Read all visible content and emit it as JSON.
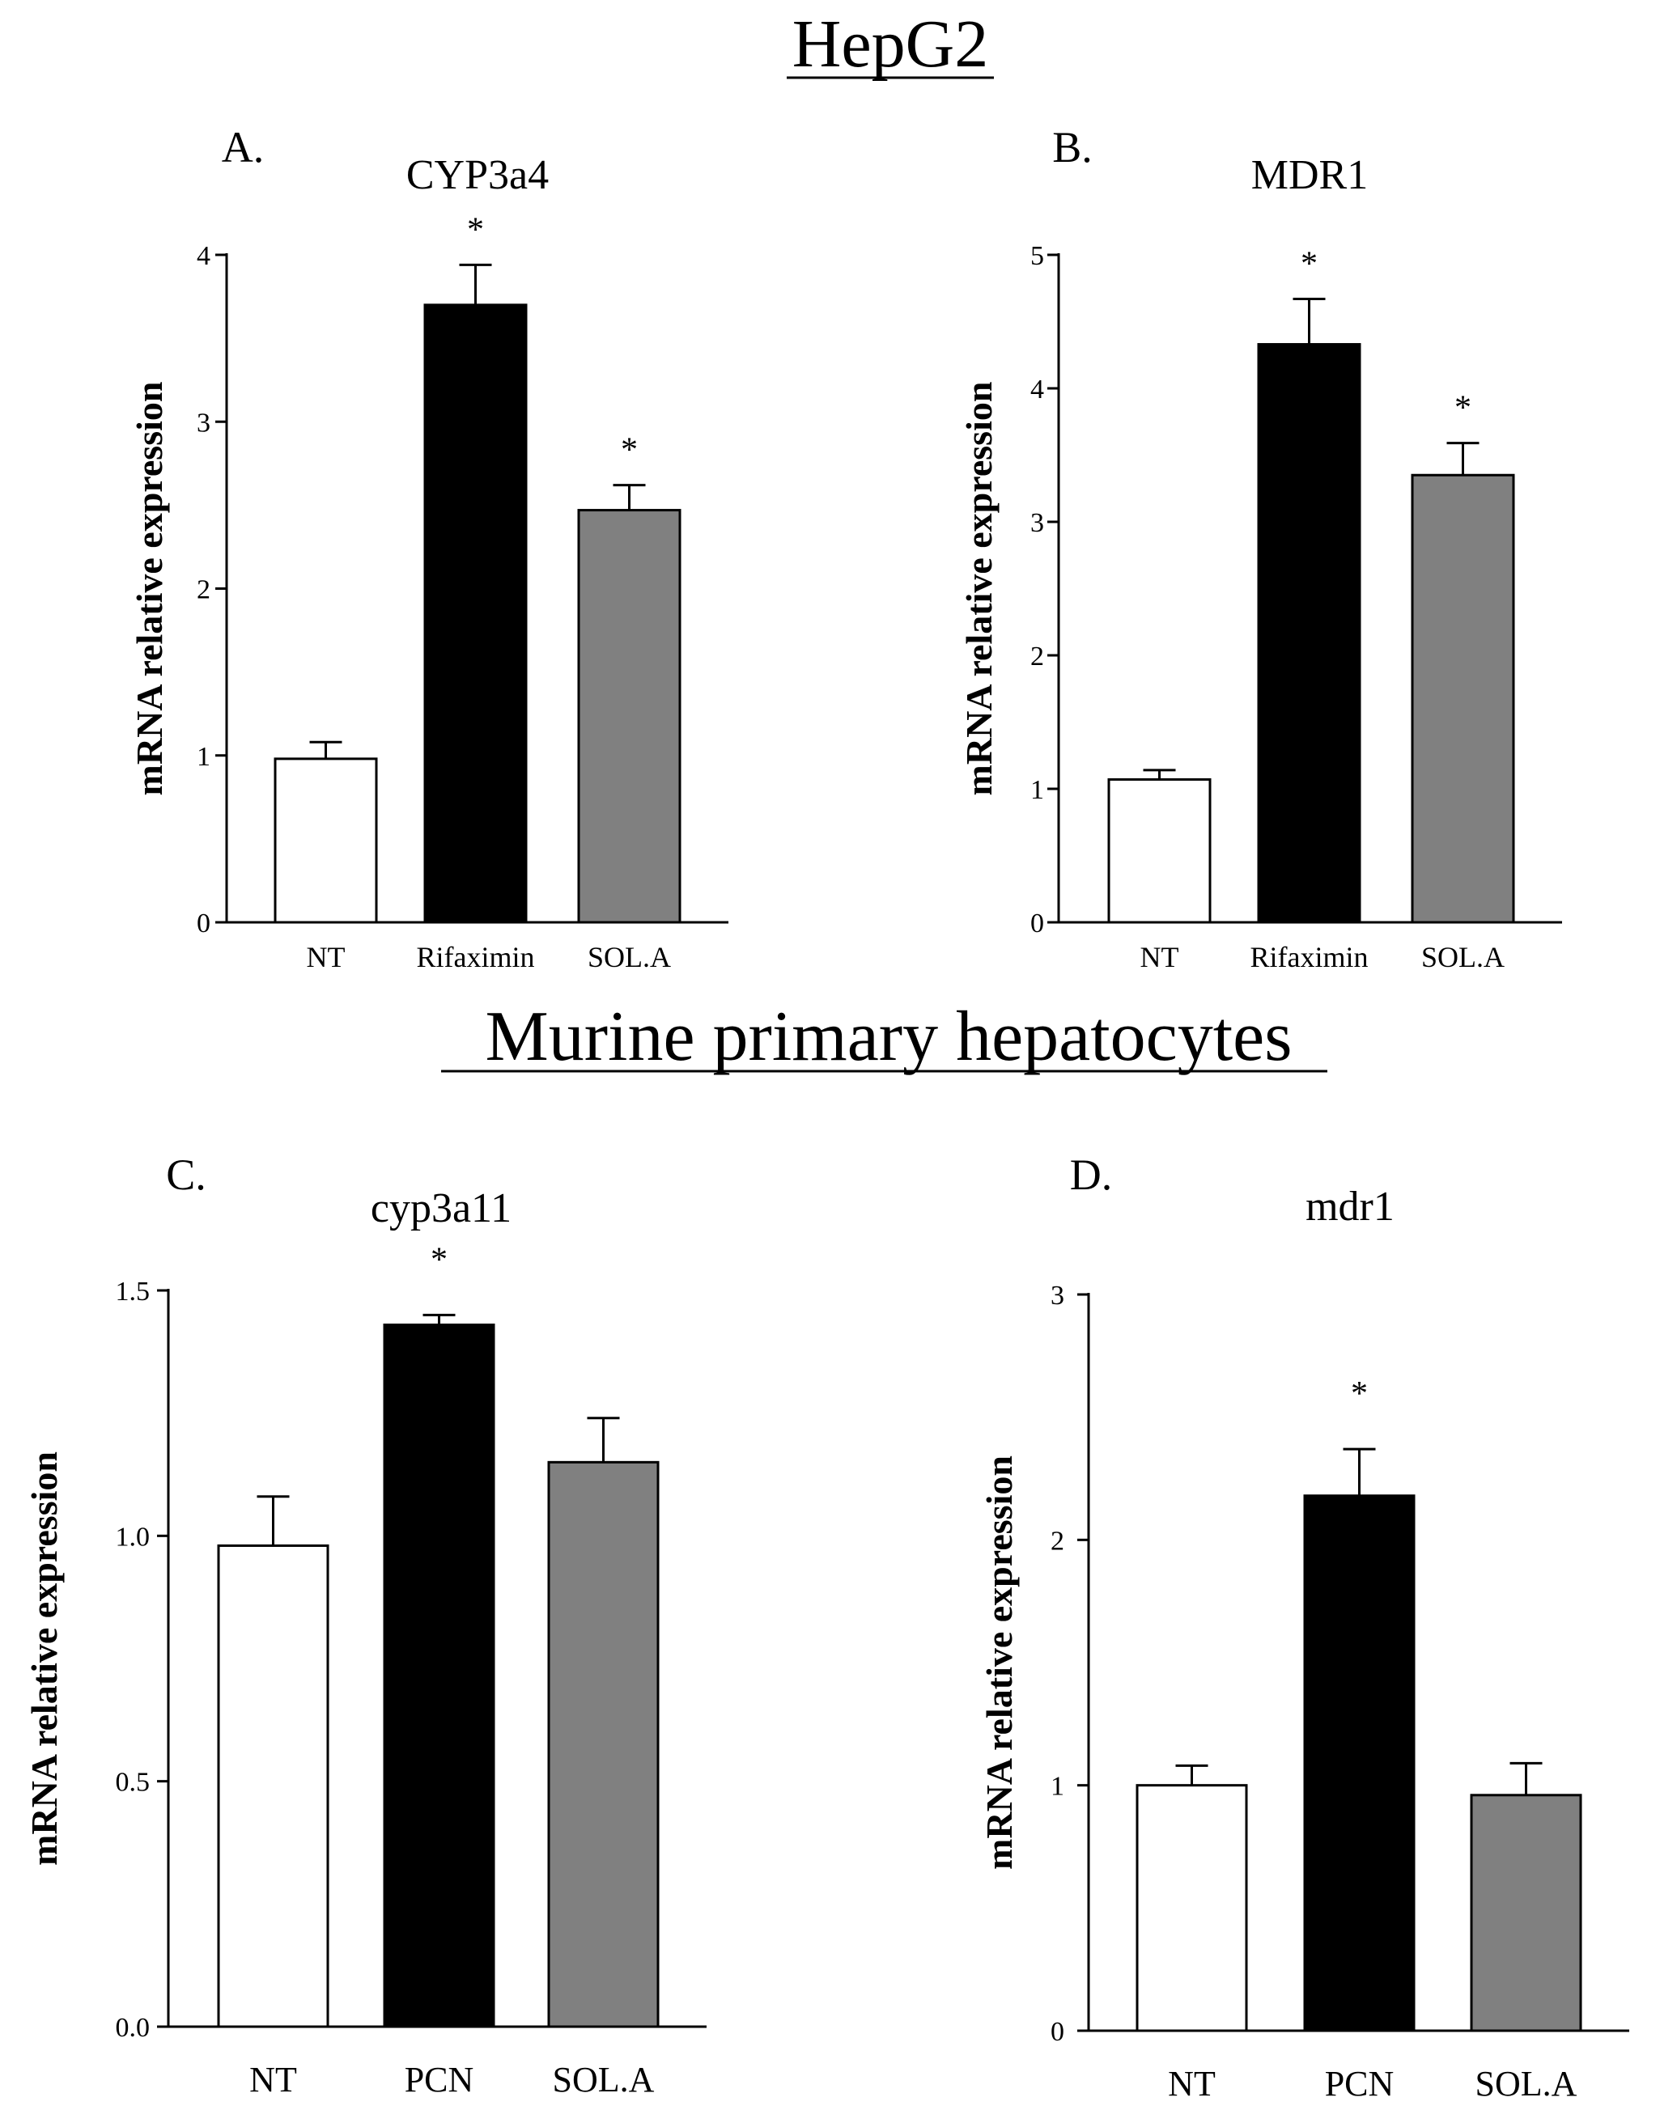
{
  "section_titles": {
    "top": "HepG2",
    "bottom": "Murine primary hepatocytes"
  },
  "colors": {
    "NT": "#ffffff",
    "treatment": "#000000",
    "SOL.A": "#808080",
    "stroke": "#000000"
  },
  "chart_data": [
    {
      "type": "bar",
      "panel_label": "A.",
      "title": "CYP3a4",
      "ylabel": "mRNA relative expression",
      "xlabel": "",
      "categories": [
        "NT",
        "Rifaximin",
        "SOL.A"
      ],
      "values": [
        0.98,
        3.7,
        2.47
      ],
      "errors": [
        0.1,
        0.24,
        0.15
      ],
      "significance": [
        "",
        "*",
        "*"
      ],
      "ylim": [
        0,
        4
      ],
      "yticks": [
        0,
        1,
        2,
        3,
        4
      ],
      "ytick_labels": [
        "0",
        "1",
        "2",
        "3",
        "4"
      ]
    },
    {
      "type": "bar",
      "panel_label": "B.",
      "title": "MDR1",
      "ylabel": "mRNA relative expression",
      "xlabel": "",
      "categories": [
        "NT",
        "Rifaximin",
        "SOL.A"
      ],
      "values": [
        1.07,
        4.33,
        3.35
      ],
      "errors": [
        0.07,
        0.34,
        0.24
      ],
      "significance": [
        "",
        "*",
        "*"
      ],
      "ylim": [
        0,
        5
      ],
      "yticks": [
        0,
        1,
        2,
        3,
        4,
        5
      ],
      "ytick_labels": [
        "0",
        "1",
        "2",
        "3",
        "4",
        "5"
      ]
    },
    {
      "type": "bar",
      "panel_label": "C.",
      "title": "cyp3a11",
      "ylabel": "mRNA relative expression",
      "xlabel": "",
      "categories": [
        "NT",
        "PCN",
        "SOL.A"
      ],
      "values": [
        0.98,
        1.43,
        1.15
      ],
      "errors": [
        0.1,
        0.02,
        0.09
      ],
      "significance": [
        "",
        "*",
        ""
      ],
      "ylim": [
        0,
        1.5
      ],
      "yticks": [
        0,
        0.5,
        1,
        1.5
      ],
      "ytick_labels": [
        "0.0",
        "0.5",
        "1.0",
        "1.5"
      ]
    },
    {
      "type": "bar",
      "panel_label": "D.",
      "title": "mdr1",
      "ylabel": "mRNA relative expression",
      "xlabel": "",
      "categories": [
        "NT",
        "PCN",
        "SOL.A"
      ],
      "values": [
        1.0,
        2.18,
        0.96
      ],
      "errors": [
        0.08,
        0.19,
        0.13
      ],
      "significance": [
        "",
        "*",
        ""
      ],
      "ylim": [
        0,
        3
      ],
      "yticks": [
        0,
        1,
        2,
        3
      ],
      "ytick_labels": [
        "0",
        "1",
        "2",
        "3"
      ]
    }
  ]
}
